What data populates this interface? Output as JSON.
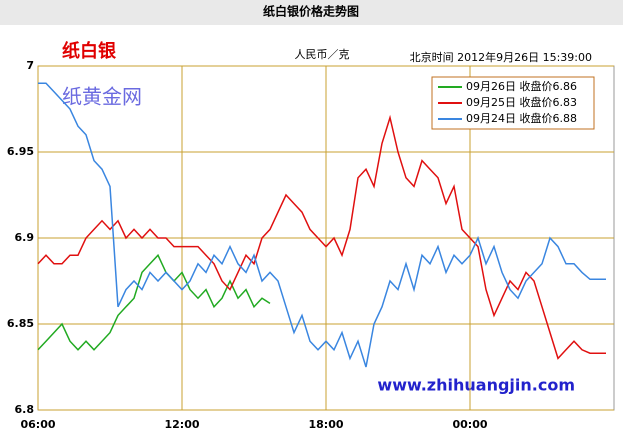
{
  "chart_data": {
    "type": "line",
    "title": "纸白银价格走势图",
    "product": "纸白银",
    "unit": "人民币／克",
    "timestamp": "北京时间 2012年9月26日 15:39:00",
    "watermark": "纸黄金网",
    "website": "www.zhihuangjin.com",
    "x": [
      "06:00",
      "06:20",
      "06:40",
      "07:00",
      "07:20",
      "07:40",
      "08:00",
      "08:20",
      "08:40",
      "09:00",
      "09:20",
      "09:40",
      "10:00",
      "10:20",
      "10:40",
      "11:00",
      "11:20",
      "11:40",
      "12:00",
      "12:20",
      "12:40",
      "13:00",
      "13:20",
      "13:40",
      "14:00",
      "14:20",
      "14:40",
      "15:00",
      "15:20",
      "15:40",
      "16:00",
      "16:20",
      "16:40",
      "17:00",
      "17:20",
      "17:40",
      "18:00",
      "18:20",
      "18:40",
      "19:00",
      "19:20",
      "19:40",
      "20:00",
      "20:20",
      "20:40",
      "21:00",
      "21:20",
      "21:40",
      "22:00",
      "22:20",
      "22:40",
      "23:00",
      "23:20",
      "23:40",
      "00:00",
      "00:20",
      "00:40",
      "01:00",
      "01:20",
      "01:40",
      "02:00",
      "02:20",
      "02:40",
      "03:00",
      "03:20",
      "03:40",
      "04:00",
      "04:20",
      "04:40",
      "05:00",
      "05:20",
      "05:40"
    ],
    "xticks": [
      "06:00",
      "12:00",
      "18:00",
      "00:00"
    ],
    "ylim": [
      6.8,
      7
    ],
    "yticks": [
      6.8,
      6.85,
      6.9,
      6.95,
      7
    ],
    "grid": true,
    "legend": "top-right",
    "series": [
      {
        "name": "09月26日 收盘价6.86",
        "color": "#22aa22",
        "values": [
          6.835,
          6.84,
          6.845,
          6.85,
          6.84,
          6.835,
          6.84,
          6.835,
          6.84,
          6.845,
          6.855,
          6.86,
          6.865,
          6.88,
          6.885,
          6.89,
          6.88,
          6.875,
          6.88,
          6.87,
          6.865,
          6.87,
          6.86,
          6.865,
          6.875,
          6.865,
          6.87,
          6.86,
          6.865,
          6.862,
          null,
          null,
          null,
          null,
          null,
          null,
          null,
          null,
          null,
          null,
          null,
          null,
          null,
          null,
          null,
          null,
          null,
          null,
          null,
          null,
          null,
          null,
          null,
          null,
          null,
          null,
          null,
          null,
          null,
          null,
          null,
          null,
          null,
          null,
          null,
          null,
          null,
          null,
          null,
          null,
          null,
          null
        ]
      },
      {
        "name": "09月25日 收盘价6.83",
        "color": "#e01010",
        "values": [
          6.885,
          6.89,
          6.885,
          6.885,
          6.89,
          6.89,
          6.9,
          6.905,
          6.91,
          6.905,
          6.91,
          6.9,
          6.905,
          6.9,
          6.905,
          6.9,
          6.9,
          6.895,
          6.895,
          6.895,
          6.895,
          6.89,
          6.885,
          6.875,
          6.87,
          6.88,
          6.89,
          6.885,
          6.9,
          6.905,
          6.915,
          6.925,
          6.92,
          6.915,
          6.905,
          6.9,
          6.895,
          6.9,
          6.89,
          6.905,
          6.935,
          6.94,
          6.93,
          6.955,
          6.97,
          6.95,
          6.935,
          6.93,
          6.945,
          6.94,
          6.935,
          6.92,
          6.93,
          6.905,
          6.9,
          6.895,
          6.87,
          6.855,
          6.865,
          6.875,
          6.87,
          6.88,
          6.875,
          6.86,
          6.845,
          6.83,
          6.835,
          6.84,
          6.835,
          6.833,
          6.833,
          6.833
        ]
      },
      {
        "name": "09月24日 收盘价6.88",
        "color": "#3a86e0",
        "values": [
          6.99,
          6.99,
          6.985,
          6.98,
          6.975,
          6.965,
          6.96,
          6.945,
          6.94,
          6.93,
          6.86,
          6.87,
          6.875,
          6.87,
          6.88,
          6.875,
          6.88,
          6.875,
          6.87,
          6.875,
          6.885,
          6.88,
          6.89,
          6.885,
          6.895,
          6.885,
          6.88,
          6.89,
          6.875,
          6.88,
          6.875,
          6.86,
          6.845,
          6.855,
          6.84,
          6.835,
          6.84,
          6.835,
          6.845,
          6.83,
          6.84,
          6.825,
          6.85,
          6.86,
          6.875,
          6.87,
          6.885,
          6.87,
          6.89,
          6.885,
          6.895,
          6.88,
          6.89,
          6.885,
          6.89,
          6.9,
          6.885,
          6.895,
          6.88,
          6.87,
          6.865,
          6.875,
          6.88,
          6.885,
          6.9,
          6.895,
          6.885,
          6.885,
          6.88,
          6.876,
          6.876,
          6.876
        ]
      }
    ]
  }
}
